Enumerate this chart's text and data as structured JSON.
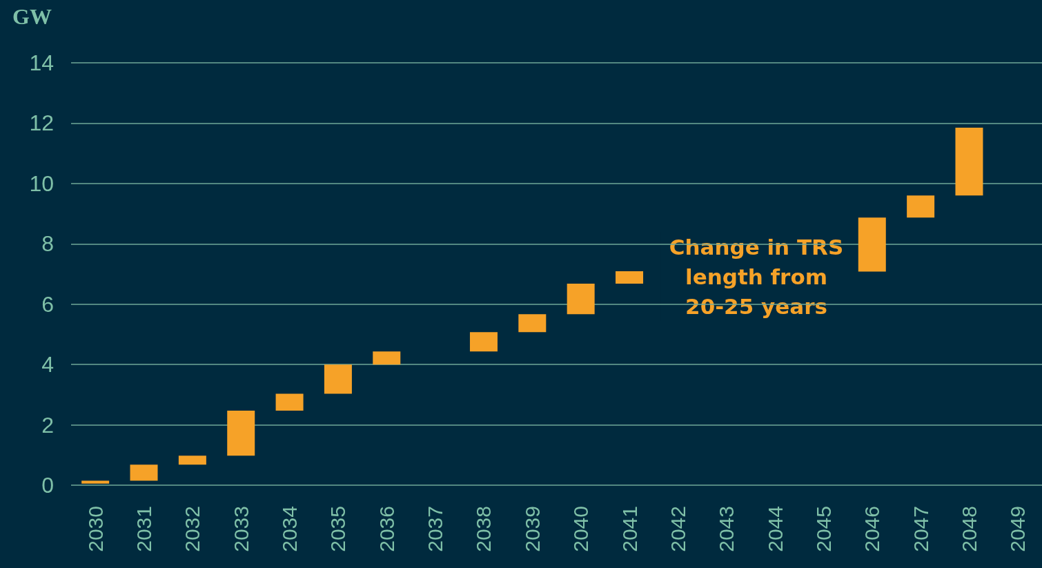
{
  "chart_data": {
    "type": "bar",
    "ylabel": "GW",
    "categories": [
      "2030",
      "2031",
      "2032",
      "2033",
      "2034",
      "2035",
      "2036",
      "2037",
      "2038",
      "2039",
      "2040",
      "2041",
      "2042",
      "2043",
      "2044",
      "2045",
      "2046",
      "2047",
      "2048",
      "2049"
    ],
    "base": [
      0.05,
      0.15,
      0.68,
      0.98,
      2.47,
      3.03,
      4.0,
      null,
      4.43,
      5.07,
      5.67,
      6.68,
      null,
      null,
      null,
      null,
      7.08,
      8.87,
      9.6,
      null
    ],
    "values": [
      0.1,
      0.53,
      0.3,
      1.49,
      0.56,
      0.97,
      0.43,
      null,
      0.64,
      0.6,
      1.01,
      0.41,
      null,
      null,
      null,
      null,
      1.79,
      0.73,
      2.25,
      null
    ],
    "color": "#f6a228",
    "ylim": [
      0,
      14
    ],
    "yticks": [
      0,
      2,
      4,
      6,
      8,
      10,
      12,
      14
    ],
    "grid": "y",
    "annotations": [
      "Change in TRS\nlength from\n20-25 years"
    ]
  }
}
